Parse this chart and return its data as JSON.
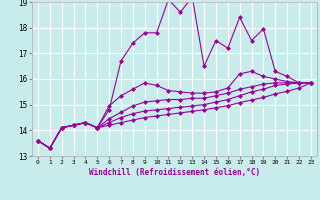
{
  "xlabel": "Windchill (Refroidissement éolien,°C)",
  "xlim": [
    -0.5,
    23.5
  ],
  "ylim": [
    13,
    19
  ],
  "yticks": [
    13,
    14,
    15,
    16,
    17,
    18,
    19
  ],
  "xticks": [
    0,
    1,
    2,
    3,
    4,
    5,
    6,
    7,
    8,
    9,
    10,
    11,
    12,
    13,
    14,
    15,
    16,
    17,
    18,
    19,
    20,
    21,
    22,
    23
  ],
  "bg_color": "#c8ecec",
  "grid_color": "#ffffff",
  "line_color": "#990099",
  "series": [
    [
      13.6,
      13.3,
      14.1,
      14.2,
      14.3,
      14.1,
      14.8,
      16.7,
      17.4,
      17.8,
      17.8,
      19.1,
      18.6,
      19.2,
      16.5,
      17.5,
      17.2,
      18.4,
      17.5,
      17.95,
      16.3,
      16.1,
      15.85,
      15.85
    ],
    [
      13.6,
      13.3,
      14.1,
      14.2,
      14.3,
      14.1,
      14.95,
      15.35,
      15.6,
      15.85,
      15.75,
      15.55,
      15.5,
      15.45,
      15.45,
      15.5,
      15.65,
      16.2,
      16.3,
      16.1,
      16.0,
      15.9,
      15.85,
      15.85
    ],
    [
      13.6,
      13.3,
      14.1,
      14.2,
      14.3,
      14.1,
      14.45,
      14.7,
      14.95,
      15.1,
      15.15,
      15.2,
      15.2,
      15.25,
      15.25,
      15.35,
      15.45,
      15.6,
      15.7,
      15.8,
      15.85,
      15.85,
      15.85,
      15.85
    ],
    [
      13.6,
      13.3,
      14.1,
      14.2,
      14.3,
      14.1,
      14.3,
      14.5,
      14.65,
      14.75,
      14.8,
      14.85,
      14.9,
      14.95,
      15.0,
      15.1,
      15.2,
      15.35,
      15.5,
      15.6,
      15.75,
      15.8,
      15.85,
      15.85
    ],
    [
      13.6,
      13.3,
      14.1,
      14.2,
      14.3,
      14.1,
      14.2,
      14.3,
      14.4,
      14.5,
      14.56,
      14.62,
      14.68,
      14.74,
      14.8,
      14.88,
      14.96,
      15.08,
      15.18,
      15.28,
      15.42,
      15.52,
      15.65,
      15.85
    ]
  ],
  "marker": "D",
  "markersize": 2,
  "linewidth": 0.8
}
